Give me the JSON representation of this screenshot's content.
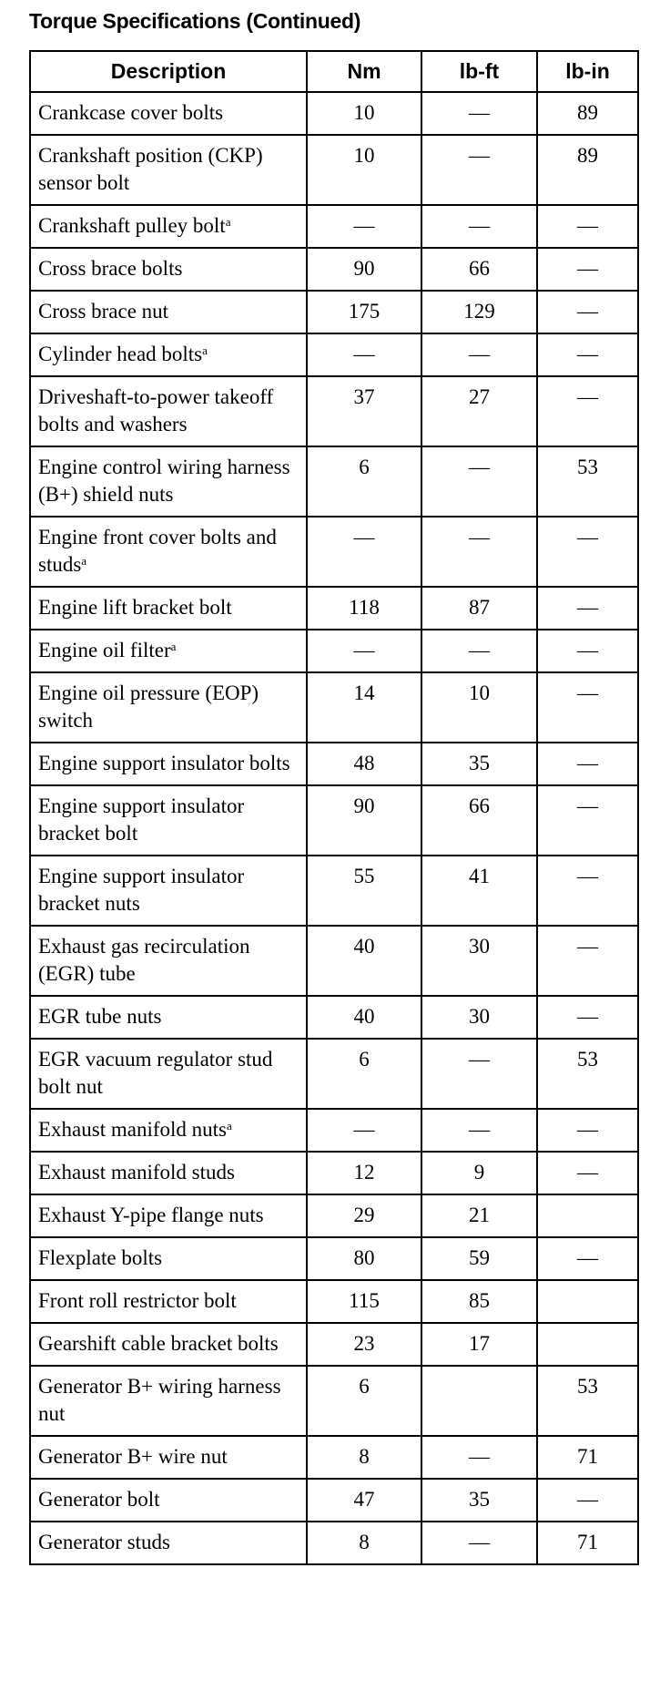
{
  "title": "Torque Specifications (Continued)",
  "columns": [
    "Description",
    "Nm",
    "lb-ft",
    "lb-in"
  ],
  "footnote_marker": "a",
  "rows": [
    {
      "description": "Crankcase cover bolts",
      "footnote": false,
      "nm": "10",
      "lbft": "—",
      "lbin": "89"
    },
    {
      "description": "Crankshaft position (CKP) sensor bolt",
      "footnote": false,
      "nm": "10",
      "lbft": "—",
      "lbin": "89"
    },
    {
      "description": "Crankshaft pulley bolt",
      "footnote": true,
      "nm": "—",
      "lbft": "—",
      "lbin": "—"
    },
    {
      "description": "Cross brace bolts",
      "footnote": false,
      "nm": "90",
      "lbft": "66",
      "lbin": "—"
    },
    {
      "description": "Cross brace nut",
      "footnote": false,
      "nm": "175",
      "lbft": "129",
      "lbin": "—"
    },
    {
      "description": "Cylinder head bolts",
      "footnote": true,
      "nm": "—",
      "lbft": "—",
      "lbin": "—"
    },
    {
      "description": "Driveshaft-to-power takeoff bolts and washers",
      "footnote": false,
      "nm": "37",
      "lbft": "27",
      "lbin": "—"
    },
    {
      "description": "Engine control wiring harness (B+) shield nuts",
      "footnote": false,
      "nm": "6",
      "lbft": "—",
      "lbin": "53"
    },
    {
      "description": "Engine front cover bolts and studs",
      "footnote": true,
      "nm": "—",
      "lbft": "—",
      "lbin": "—"
    },
    {
      "description": "Engine lift bracket bolt",
      "footnote": false,
      "nm": "118",
      "lbft": "87",
      "lbin": "—"
    },
    {
      "description": "Engine oil filter",
      "footnote": true,
      "nm": "—",
      "lbft": "—",
      "lbin": "—"
    },
    {
      "description": "Engine oil pressure (EOP) switch",
      "footnote": false,
      "nm": "14",
      "lbft": "10",
      "lbin": "—"
    },
    {
      "description": "Engine support insulator bolts",
      "footnote": false,
      "nm": "48",
      "lbft": "35",
      "lbin": "—"
    },
    {
      "description": "Engine support insulator bracket bolt",
      "footnote": false,
      "nm": "90",
      "lbft": "66",
      "lbin": "—"
    },
    {
      "description": "Engine support insulator bracket nuts",
      "footnote": false,
      "nm": "55",
      "lbft": "41",
      "lbin": "—"
    },
    {
      "description": "Exhaust gas recirculation (EGR) tube",
      "footnote": false,
      "nm": "40",
      "lbft": "30",
      "lbin": "—"
    },
    {
      "description": "EGR tube nuts",
      "footnote": false,
      "nm": "40",
      "lbft": "30",
      "lbin": "—"
    },
    {
      "description": "EGR vacuum regulator stud bolt nut",
      "footnote": false,
      "nm": "6",
      "lbft": "—",
      "lbin": "53"
    },
    {
      "description": "Exhaust manifold nuts",
      "footnote": true,
      "nm": "—",
      "lbft": "—",
      "lbin": "—"
    },
    {
      "description": "Exhaust manifold studs",
      "footnote": false,
      "nm": "12",
      "lbft": "9",
      "lbin": "—"
    },
    {
      "description": "Exhaust Y-pipe flange nuts",
      "footnote": false,
      "nm": "29",
      "lbft": "21",
      "lbin": ""
    },
    {
      "description": "Flexplate bolts",
      "footnote": false,
      "nm": "80",
      "lbft": "59",
      "lbin": "—"
    },
    {
      "description": "Front roll restrictor bolt",
      "footnote": false,
      "nm": "115",
      "lbft": "85",
      "lbin": ""
    },
    {
      "description": "Gearshift cable bracket bolts",
      "footnote": false,
      "nm": "23",
      "lbft": "17",
      "lbin": ""
    },
    {
      "description": "Generator B+ wiring harness nut",
      "footnote": false,
      "nm": "6",
      "lbft": "",
      "lbin": "53"
    },
    {
      "description": "Generator B+ wire nut",
      "footnote": false,
      "nm": "8",
      "lbft": "—",
      "lbin": "71"
    },
    {
      "description": "Generator bolt",
      "footnote": false,
      "nm": "47",
      "lbft": "35",
      "lbin": "—"
    },
    {
      "description": "Generator studs",
      "footnote": false,
      "nm": "8",
      "lbft": "—",
      "lbin": "71"
    }
  ]
}
